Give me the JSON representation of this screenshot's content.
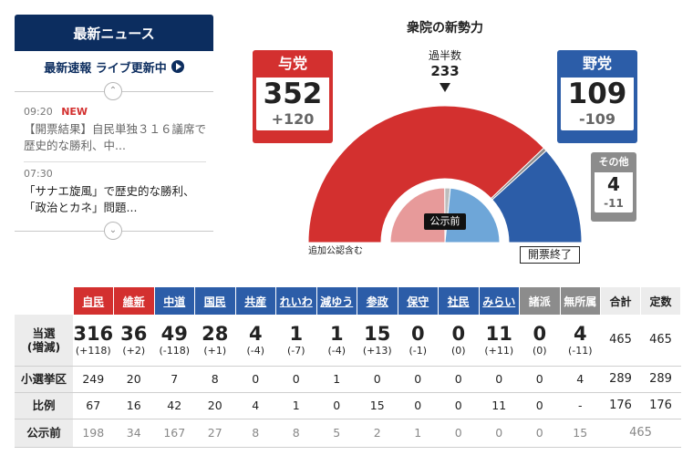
{
  "news": {
    "header": "最新ニュース",
    "live_label": "最新速報 ライブ更新中",
    "items": [
      {
        "time": "09:20",
        "badge": "NEW",
        "text": "【開票結果】自民単独３１６議席で歴史的な勝利、中..."
      },
      {
        "time": "07:30",
        "badge": "",
        "text": "「サナエ旋風」で歴史的な勝利、「政治とカネ」問題..."
      }
    ]
  },
  "chart": {
    "title": "衆院の新勢力",
    "majority_label": "過半数",
    "majority_value": "233",
    "pre_election_label": "公示前",
    "extra_note": "追加公認含む",
    "status": "開票終了",
    "ruling": {
      "label": "与党",
      "seats": "352",
      "diff": "+120",
      "color": "#d3302f"
    },
    "opposition": {
      "label": "野党",
      "seats": "109",
      "diff": "-109",
      "color": "#2c5da8"
    },
    "others": {
      "label": "その他",
      "seats": "4",
      "diff": "-11",
      "color": "#8c8c8c"
    }
  },
  "chart_data": {
    "type": "pie",
    "title": "衆院の新勢力",
    "total": 465,
    "slices": [
      {
        "name": "与党",
        "value": 352,
        "color": "#d3302f"
      },
      {
        "name": "その他",
        "value": 4,
        "color": "#8c8c8c"
      },
      {
        "name": "野党",
        "value": 109,
        "color": "#2c5da8"
      }
    ],
    "inner_slices_pre_election": [
      {
        "name": "与党",
        "value": 232,
        "color": "#e79a9a"
      },
      {
        "name": "その他",
        "value": 15,
        "color": "#bdbdbd"
      },
      {
        "name": "野党",
        "value": 218,
        "color": "#6ea6d8"
      }
    ]
  },
  "table": {
    "parties": [
      {
        "name": "自民",
        "group": "rul",
        "underline": true
      },
      {
        "name": "維新",
        "group": "rul",
        "underline": true
      },
      {
        "name": "中道",
        "group": "opp",
        "underline": true
      },
      {
        "name": "国民",
        "group": "opp",
        "underline": true
      },
      {
        "name": "共産",
        "group": "opp",
        "underline": true
      },
      {
        "name": "れいわ",
        "group": "opp",
        "underline": true
      },
      {
        "name": "減ゆう",
        "group": "opp",
        "underline": true
      },
      {
        "name": "参政",
        "group": "opp",
        "underline": true
      },
      {
        "name": "保守",
        "group": "opp",
        "underline": true
      },
      {
        "name": "社民",
        "group": "opp",
        "underline": true
      },
      {
        "name": "みらい",
        "group": "opp",
        "underline": true
      },
      {
        "name": "諸派",
        "group": "oth",
        "underline": false
      },
      {
        "name": "無所属",
        "group": "oth",
        "underline": false
      }
    ],
    "total_header": "合計",
    "fixed_header": "定数",
    "rows": {
      "win": {
        "label1": "当選",
        "label2": "(増減)",
        "values": [
          "316",
          "36",
          "49",
          "28",
          "4",
          "1",
          "1",
          "15",
          "0",
          "0",
          "11",
          "0",
          "4"
        ],
        "diffs": [
          "(+118)",
          "(+2)",
          "(-118)",
          "(+1)",
          "(-4)",
          "(-7)",
          "(-4)",
          "(+13)",
          "(-1)",
          "(0)",
          "(+11)",
          "(0)",
          "(-11)"
        ],
        "total": "465",
        "fixed": "465"
      },
      "single": {
        "label": "小選挙区",
        "values": [
          "249",
          "20",
          "7",
          "8",
          "0",
          "0",
          "1",
          "0",
          "0",
          "0",
          "0",
          "0",
          "4"
        ],
        "total": "289",
        "fixed": "289"
      },
      "pr": {
        "label": "比例",
        "values": [
          "67",
          "16",
          "42",
          "20",
          "4",
          "1",
          "0",
          "15",
          "0",
          "0",
          "11",
          "0",
          "-"
        ],
        "total": "176",
        "fixed": "176"
      },
      "pre": {
        "label": "公示前",
        "values": [
          "198",
          "34",
          "167",
          "27",
          "8",
          "8",
          "5",
          "2",
          "1",
          "0",
          "0",
          "0",
          "15"
        ],
        "total": "465"
      }
    }
  }
}
